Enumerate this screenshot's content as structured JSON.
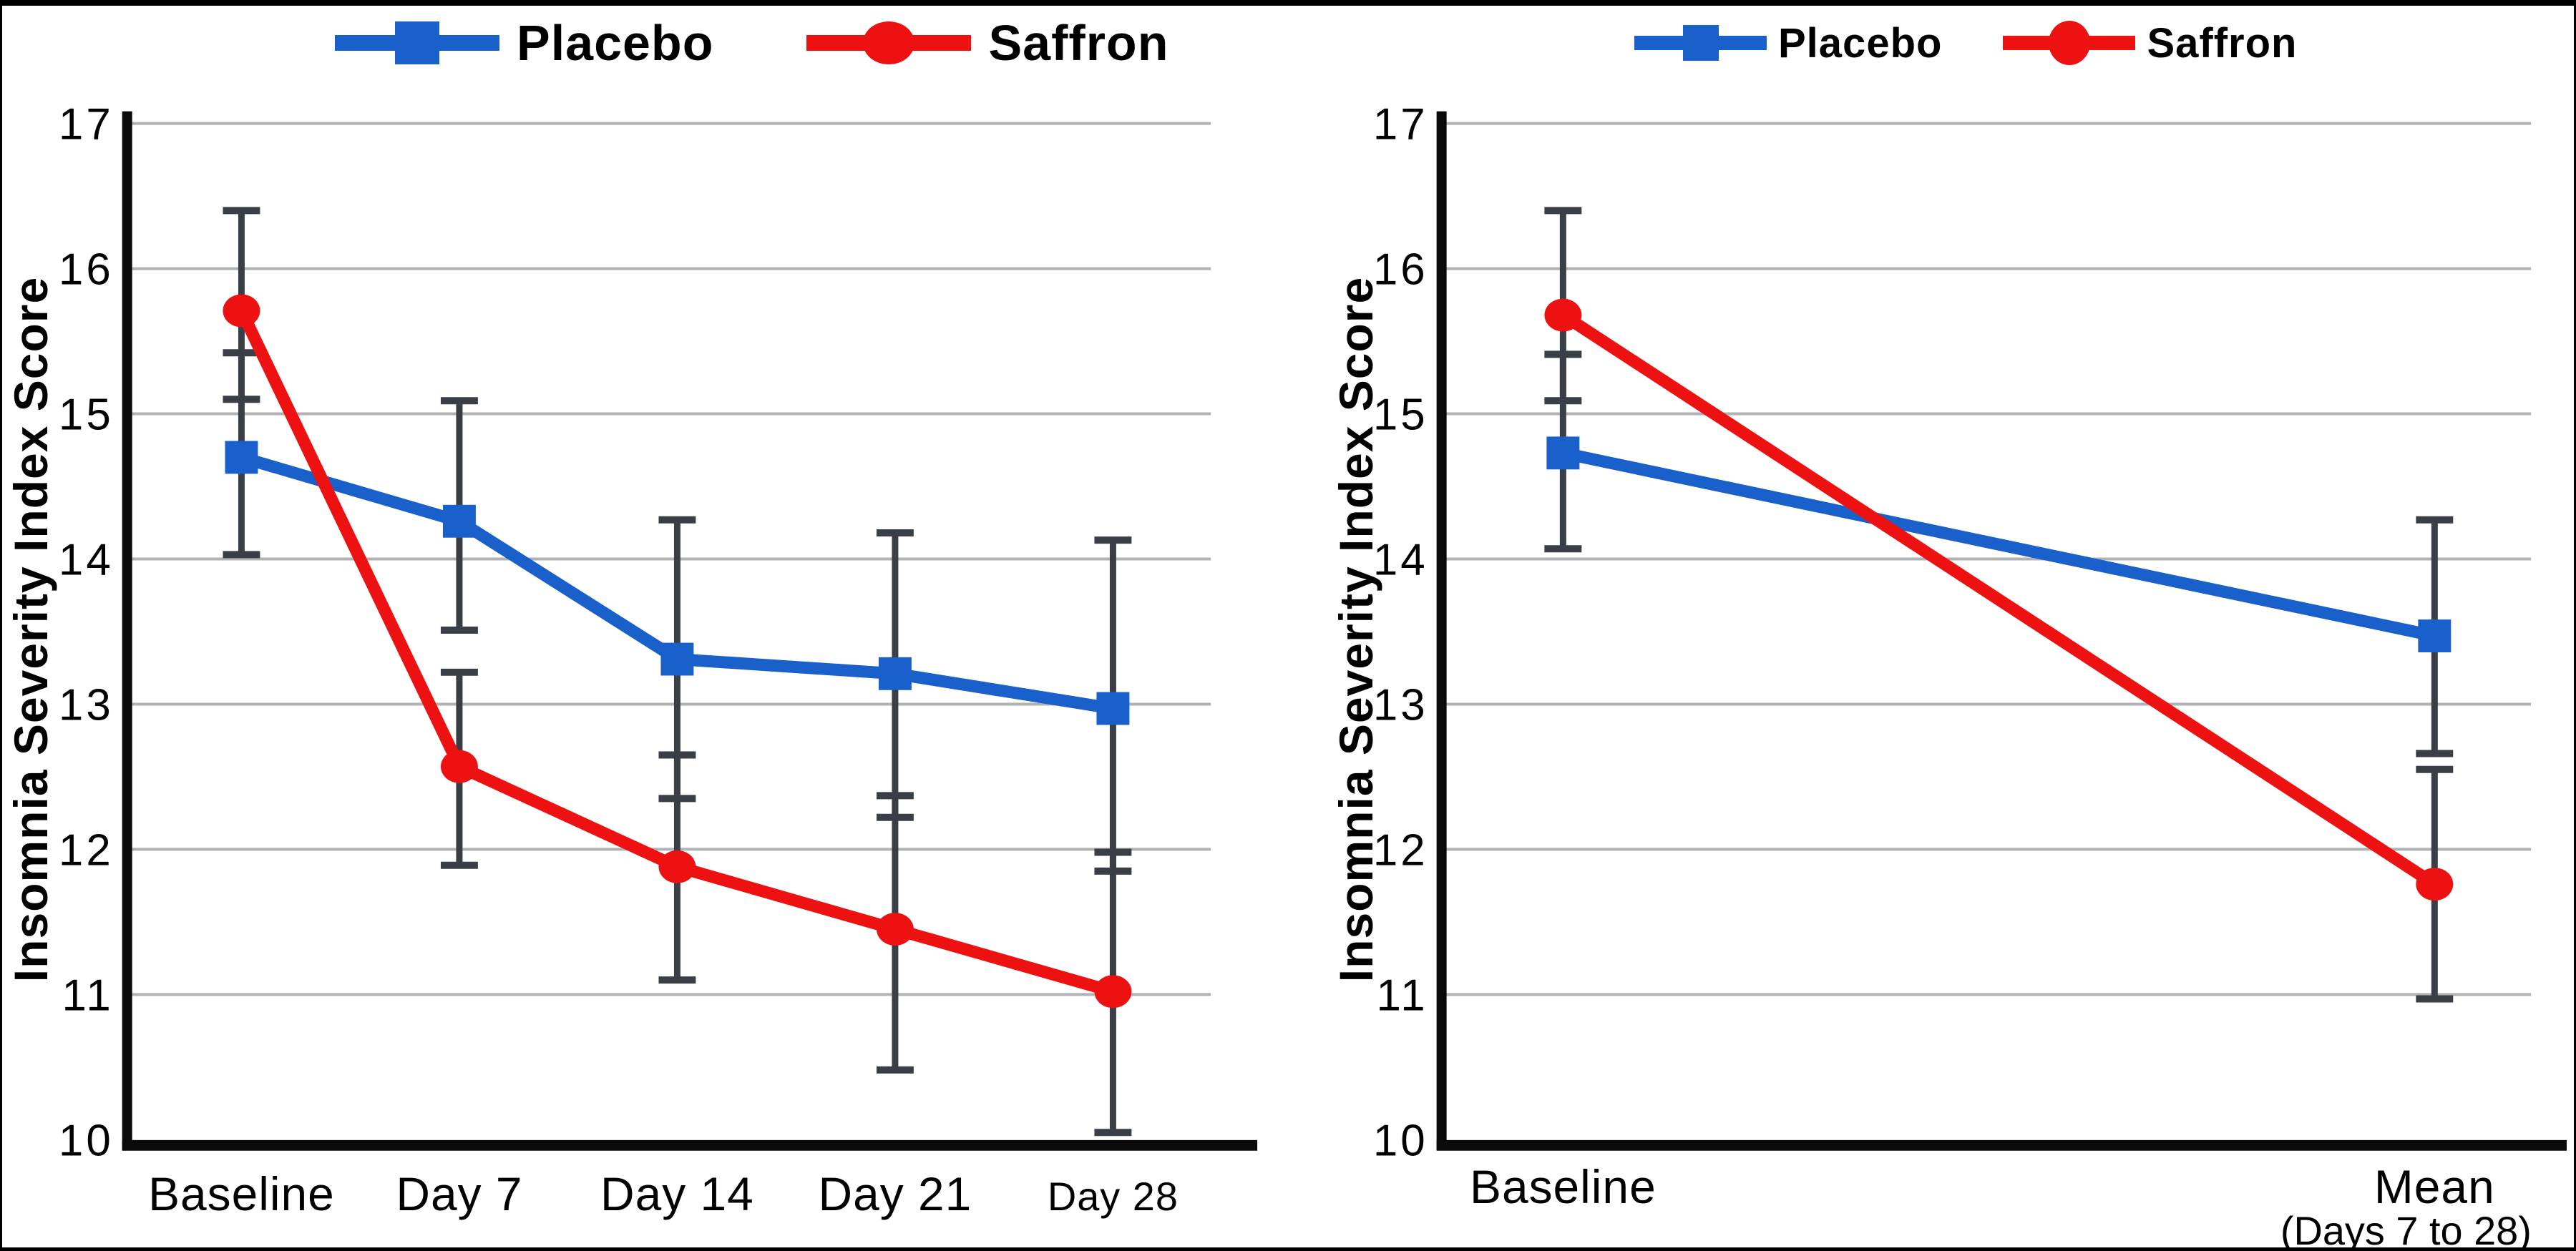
{
  "figure": {
    "background": "#ffffff",
    "border_color": "#000000",
    "colors": {
      "placebo": "#1a60ca",
      "saffron": "#ee1111",
      "error_bar": "#3a3e46",
      "gridline": "#b0b2b5",
      "axis": "#0a0a0a",
      "text": "#000000"
    }
  },
  "chart_data": [
    {
      "type": "line",
      "title": "",
      "xlabel": "",
      "ylabel": "Insomnia Severity Index Score",
      "ylim": [
        10,
        17
      ],
      "yticks": [
        17,
        16,
        15,
        14,
        13,
        12,
        11,
        10
      ],
      "grid": "horizontal",
      "legend_position": "top",
      "categories": [
        {
          "label": "Baseline"
        },
        {
          "label": "Day 7"
        },
        {
          "label": "Day 14"
        },
        {
          "label": "Day 21"
        },
        {
          "label": "Day 28",
          "small": true
        }
      ],
      "series": [
        {
          "name": "Placebo",
          "marker": "square",
          "color_key": "placebo",
          "values": [
            14.7,
            14.26,
            13.31,
            13.21,
            12.97
          ],
          "err_low": [
            14.03,
            13.51,
            12.35,
            12.22,
            11.85
          ],
          "err_high": [
            15.42,
            15.09,
            14.27,
            14.18,
            14.13
          ]
        },
        {
          "name": "Saffron",
          "marker": "circle",
          "color_key": "saffron",
          "values": [
            15.71,
            12.57,
            11.88,
            11.45,
            11.02
          ],
          "err_low": [
            15.1,
            11.89,
            11.1,
            10.48,
            10.05
          ],
          "err_high": [
            16.4,
            13.22,
            12.65,
            12.37,
            11.98
          ]
        }
      ]
    },
    {
      "type": "line",
      "title": "",
      "xlabel": "",
      "ylabel": "Insomnia Severity Index Score",
      "ylim": [
        10,
        17
      ],
      "yticks": [
        17,
        16,
        15,
        14,
        13,
        12,
        11,
        10
      ],
      "grid": "horizontal",
      "legend_position": "top",
      "categories": [
        {
          "label": "Baseline"
        },
        {
          "label": "Mean",
          "sublabel": "(Days 7 to 28)"
        }
      ],
      "series": [
        {
          "name": "Placebo",
          "marker": "square",
          "color_key": "placebo",
          "values": [
            14.73,
            13.47
          ],
          "err_low": [
            14.07,
            12.66
          ],
          "err_high": [
            15.41,
            14.27
          ]
        },
        {
          "name": "Saffron",
          "marker": "circle",
          "color_key": "saffron",
          "values": [
            15.68,
            11.76
          ],
          "err_low": [
            15.09,
            10.97
          ],
          "err_high": [
            16.4,
            12.55
          ]
        }
      ]
    }
  ]
}
